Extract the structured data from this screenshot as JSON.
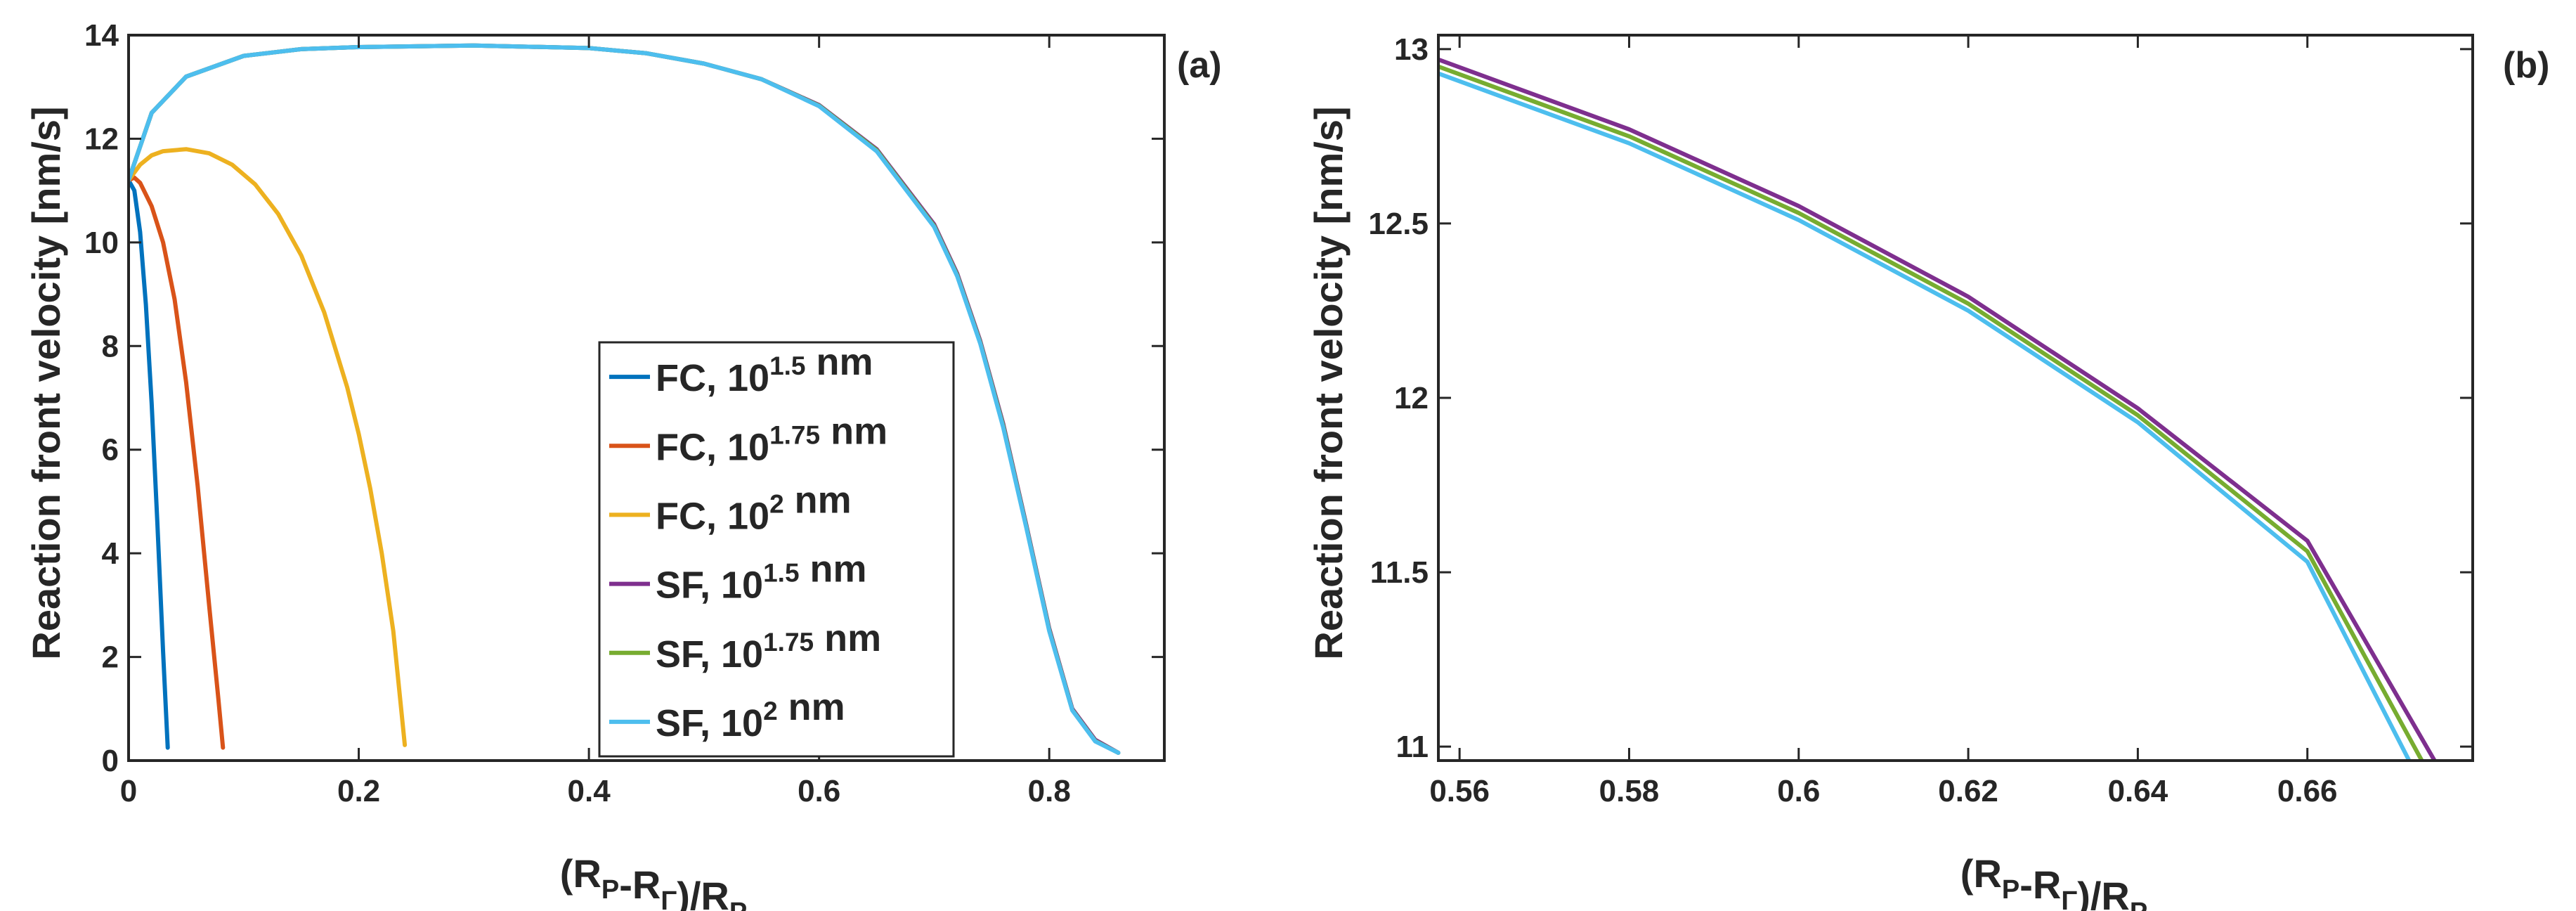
{
  "chart_data": [
    {
      "id": "a",
      "type": "line",
      "panel_tag": "(a)",
      "title": "",
      "xlabel": "(R_P-R_Γ)/R_P",
      "ylabel": "Reaction front velocity [nm/s]",
      "xlim": [
        0,
        0.9
      ],
      "ylim": [
        0,
        14
      ],
      "xticks": [
        0,
        0.2,
        0.4,
        0.6,
        0.8
      ],
      "xtick_labels": [
        "0",
        "0.2",
        "0.4",
        "0.6",
        "0.8"
      ],
      "yticks": [
        0,
        2,
        4,
        6,
        8,
        10,
        12,
        14
      ],
      "ytick_labels": [
        "0",
        "2",
        "4",
        "6",
        "8",
        "10",
        "12",
        "14"
      ],
      "grid": false,
      "legend_position": "bottom-center",
      "series": [
        {
          "name": "FC, 10^1.5 nm",
          "color": "#0072BD",
          "x": [
            0,
            0.005,
            0.01,
            0.015,
            0.02,
            0.025,
            0.03,
            0.034
          ],
          "y": [
            11.2,
            11.0,
            10.2,
            8.8,
            6.9,
            4.6,
            2.1,
            0.25
          ]
        },
        {
          "name": "FC, 10^1.75 nm",
          "color": "#D95319",
          "x": [
            0,
            0.005,
            0.01,
            0.02,
            0.03,
            0.04,
            0.05,
            0.06,
            0.07,
            0.078,
            0.082
          ],
          "y": [
            11.2,
            11.25,
            11.15,
            10.7,
            10.0,
            8.9,
            7.3,
            5.3,
            3.0,
            1.2,
            0.25
          ]
        },
        {
          "name": "FC, 10^2 nm",
          "color": "#EDB120",
          "x": [
            0,
            0.01,
            0.02,
            0.03,
            0.05,
            0.07,
            0.09,
            0.11,
            0.13,
            0.15,
            0.17,
            0.19,
            0.2,
            0.21,
            0.22,
            0.23,
            0.24
          ],
          "y": [
            11.2,
            11.5,
            11.68,
            11.76,
            11.8,
            11.72,
            11.5,
            11.12,
            10.55,
            9.75,
            8.65,
            7.2,
            6.3,
            5.25,
            4.0,
            2.5,
            0.3
          ]
        },
        {
          "name": "SF, 10^1.5 nm",
          "color": "#7E2F8E",
          "x": [
            0,
            0.02,
            0.05,
            0.1,
            0.15,
            0.2,
            0.3,
            0.4,
            0.45,
            0.5,
            0.55,
            0.6,
            0.65,
            0.7,
            0.72,
            0.74,
            0.76,
            0.78,
            0.8,
            0.82,
            0.84,
            0.86
          ],
          "y": [
            11.2,
            12.5,
            13.2,
            13.6,
            13.73,
            13.77,
            13.8,
            13.75,
            13.65,
            13.45,
            13.15,
            12.65,
            11.8,
            10.35,
            9.4,
            8.1,
            6.5,
            4.55,
            2.55,
            1.0,
            0.4,
            0.15
          ]
        },
        {
          "name": "SF, 10^1.75 nm",
          "color": "#77AC30",
          "x": [
            0,
            0.02,
            0.05,
            0.1,
            0.15,
            0.2,
            0.3,
            0.4,
            0.45,
            0.5,
            0.55,
            0.6,
            0.65,
            0.7,
            0.72,
            0.74,
            0.76,
            0.78,
            0.8,
            0.82,
            0.84,
            0.86
          ],
          "y": [
            11.2,
            12.5,
            13.2,
            13.6,
            13.73,
            13.77,
            13.8,
            13.75,
            13.65,
            13.45,
            13.15,
            12.64,
            11.78,
            10.32,
            9.37,
            8.07,
            6.46,
            4.52,
            2.52,
            0.98,
            0.38,
            0.15
          ]
        },
        {
          "name": "SF, 10^2 nm",
          "color": "#4DBEEE",
          "x": [
            0,
            0.02,
            0.05,
            0.1,
            0.15,
            0.2,
            0.3,
            0.4,
            0.45,
            0.5,
            0.55,
            0.6,
            0.65,
            0.7,
            0.72,
            0.74,
            0.76,
            0.78,
            0.8,
            0.82,
            0.84,
            0.86
          ],
          "y": [
            11.2,
            12.5,
            13.2,
            13.6,
            13.73,
            13.77,
            13.8,
            13.75,
            13.65,
            13.45,
            13.15,
            12.63,
            11.76,
            10.3,
            9.35,
            8.05,
            6.43,
            4.5,
            2.5,
            0.97,
            0.37,
            0.15
          ]
        }
      ]
    },
    {
      "id": "b",
      "type": "line",
      "panel_tag": "(b)",
      "title": "",
      "xlabel": "(R_P-R_Γ)/R_P",
      "ylabel": "Reaction front velocity [nm/s]",
      "xlim": [
        0.5575,
        0.6795
      ],
      "ylim": [
        10.96,
        13.04
      ],
      "xticks": [
        0.56,
        0.58,
        0.6,
        0.62,
        0.64,
        0.66
      ],
      "xtick_labels": [
        "0.56",
        "0.58",
        "0.6",
        "0.62",
        "0.64",
        "0.66"
      ],
      "yticks": [
        11,
        11.5,
        12,
        12.5,
        13
      ],
      "ytick_labels": [
        "11",
        "11.5",
        "12",
        "12.5",
        "13"
      ],
      "grid": false,
      "legend_position": "none",
      "series": [
        {
          "name": "SF, 10^1.5 nm",
          "color": "#7E2F8E",
          "x": [
            0.5575,
            0.58,
            0.6,
            0.62,
            0.64,
            0.66,
            0.675
          ],
          "y": [
            12.97,
            12.77,
            12.55,
            12.29,
            11.97,
            11.59,
            10.96
          ]
        },
        {
          "name": "SF, 10^1.75 nm",
          "color": "#77AC30",
          "x": [
            0.5575,
            0.58,
            0.6,
            0.62,
            0.64,
            0.66,
            0.6735
          ],
          "y": [
            12.95,
            12.75,
            12.53,
            12.27,
            11.95,
            11.56,
            10.96
          ]
        },
        {
          "name": "SF, 10^2 nm",
          "color": "#4DBEEE",
          "x": [
            0.5575,
            0.58,
            0.6,
            0.62,
            0.64,
            0.66,
            0.672
          ],
          "y": [
            12.93,
            12.73,
            12.51,
            12.25,
            11.93,
            11.53,
            10.96
          ]
        }
      ]
    }
  ]
}
